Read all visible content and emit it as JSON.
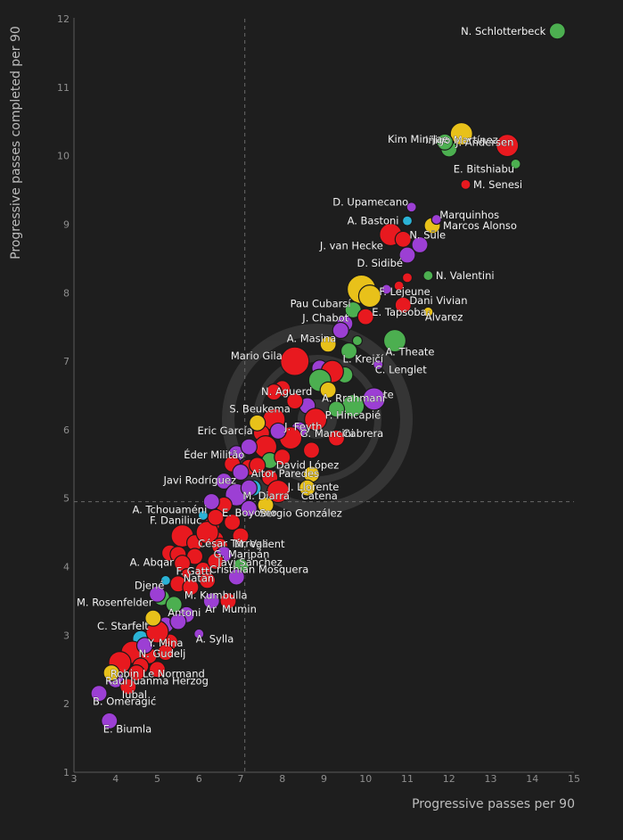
{
  "chart_data": {
    "type": "scatter",
    "title": "",
    "xlabel": "Progressive passes per 90",
    "ylabel": "Progressive passes completed per 90",
    "xlim": [
      3,
      15
    ],
    "ylim": [
      1,
      12
    ],
    "x_ticks": [
      "3",
      "4",
      "5",
      "6",
      "7",
      "8",
      "9",
      "10",
      "11",
      "12",
      "13",
      "14",
      "15"
    ],
    "y_ticks": [
      "1",
      "2",
      "3",
      "4",
      "5",
      "6",
      "7",
      "8",
      "9",
      "10",
      "11",
      "12"
    ],
    "x_ref": 7.1,
    "y_ref": 4.95,
    "colors": {
      "green": "#4caf50",
      "red": "#e8191f",
      "purple": "#9c3fd4",
      "yellow": "#e8c11a",
      "cyan": "#2bb3d6",
      "background": "#1e1e1e",
      "axis": "#666666",
      "text": "#f2f2f2"
    },
    "labeled_points": [
      {
        "name": "N. Schlotterbeck",
        "x": 14.6,
        "y": 11.82,
        "size": "m",
        "color": "green",
        "anchor": "left"
      },
      {
        "name": "Iñigo Martínez",
        "x": 13.4,
        "y": 10.15,
        "size": "l",
        "color": "red",
        "anchor": "left-top"
      },
      {
        "name": "Kim Min-Jae",
        "x": 12.3,
        "y": 10.32,
        "size": "l",
        "color": "yellow",
        "anchor": "left-bottom"
      },
      {
        "name": "J. Andersen",
        "x": 11.9,
        "y": 10.2,
        "size": "m",
        "color": "green",
        "anchor": "right"
      },
      {
        "name": "E. Bitshiabu",
        "x": 13.6,
        "y": 9.88,
        "size": "s",
        "color": "green",
        "anchor": "left-below"
      },
      {
        "name": "M. Senesi",
        "x": 12.4,
        "y": 9.58,
        "size": "s",
        "color": "red",
        "anchor": "right"
      },
      {
        "name": "D. Upamecano",
        "x": 11.1,
        "y": 9.25,
        "size": "s",
        "color": "purple",
        "anchor": "left-top"
      },
      {
        "name": "Marquinhos",
        "x": 11.7,
        "y": 9.07,
        "size": "s",
        "color": "purple",
        "anchor": "right-top"
      },
      {
        "name": "A. Bastoni",
        "x": 11.0,
        "y": 9.05,
        "size": "s",
        "color": "cyan",
        "anchor": "left"
      },
      {
        "name": "Marcos Alonso",
        "x": 11.6,
        "y": 8.98,
        "size": "m",
        "color": "yellow",
        "anchor": "right"
      },
      {
        "name": "J. van Hecke",
        "x": 10.6,
        "y": 8.85,
        "size": "l",
        "color": "red",
        "anchor": "left-below"
      },
      {
        "name": "N. Süle",
        "x": 10.9,
        "y": 8.78,
        "size": "m",
        "color": "red",
        "anchor": "right-top"
      },
      {
        "name": "D. Sidibé",
        "x": 11.0,
        "y": 8.55,
        "size": "m",
        "color": "purple",
        "anchor": "left-below"
      },
      {
        "name": "N. Valentini",
        "x": 11.5,
        "y": 8.25,
        "size": "s",
        "color": "green",
        "anchor": "right"
      },
      {
        "name": "Pau Cubarsí",
        "x": 9.9,
        "y": 8.05,
        "size": "xl",
        "color": "yellow",
        "anchor": "left-below"
      },
      {
        "name": "F. Lejeune",
        "x": 10.1,
        "y": 7.95,
        "size": "l",
        "color": "yellow",
        "anchor": "right-top"
      },
      {
        "name": "Dani Vivian",
        "x": 10.9,
        "y": 7.82,
        "size": "m",
        "color": "red",
        "anchor": "right-top"
      },
      {
        "name": "J. Chabot",
        "x": 9.7,
        "y": 7.75,
        "size": "m",
        "color": "green",
        "anchor": "left-below"
      },
      {
        "name": "E. Tapsoba",
        "x": 10.0,
        "y": 7.65,
        "size": "m",
        "color": "red",
        "anchor": "right-top"
      },
      {
        "name": "Álvarez",
        "x": 11.5,
        "y": 7.72,
        "size": "s",
        "color": "yellow",
        "anchor": "right-below"
      },
      {
        "name": "A. Masina",
        "x": 9.4,
        "y": 7.45,
        "size": "m",
        "color": "purple",
        "anchor": "left-below"
      },
      {
        "name": "A. Theate",
        "x": 10.7,
        "y": 7.3,
        "size": "l",
        "color": "green",
        "anchor": "right-below"
      },
      {
        "name": "L. Krejčí",
        "x": 9.6,
        "y": 7.15,
        "size": "m",
        "color": "green",
        "anchor": "right-below"
      },
      {
        "name": "Mario Gila",
        "x": 8.3,
        "y": 7.0,
        "size": "xl",
        "color": "red",
        "anchor": "left-top"
      },
      {
        "name": "C. Lenglet",
        "x": 10.3,
        "y": 6.95,
        "size": "s",
        "color": "purple",
        "anchor": "right-below"
      },
      {
        "name": "N. Aguerd",
        "x": 8.9,
        "y": 6.72,
        "size": "l",
        "color": "green",
        "anchor": "left-below"
      },
      {
        "name": "A. Rrahmani",
        "x": 9.1,
        "y": 6.58,
        "size": "m",
        "color": "yellow",
        "anchor": "right-below"
      },
      {
        "name": "te",
        "x": 10.2,
        "y": 6.45,
        "size": "l",
        "color": "purple",
        "anchor": "right-top"
      },
      {
        "name": "S. Beukema",
        "x": 8.3,
        "y": 6.42,
        "size": "m",
        "color": "red",
        "anchor": "left-below"
      },
      {
        "name": "P. Hincapié",
        "x": 8.8,
        "y": 6.15,
        "size": "l",
        "color": "red",
        "anchor": "right-top"
      },
      {
        "name": "Eric García",
        "x": 7.4,
        "y": 6.1,
        "size": "m",
        "color": "yellow",
        "anchor": "left-below"
      },
      {
        "name": "J. Feyth",
        "x": 7.9,
        "y": 5.98,
        "size": "m",
        "color": "purple",
        "anchor": "right-top"
      },
      {
        "name": "G. Mancini",
        "x": 8.2,
        "y": 5.88,
        "size": "l",
        "color": "red",
        "anchor": "right-top"
      },
      {
        "name": "Cabrera",
        "x": 9.3,
        "y": 5.88,
        "size": "m",
        "color": "red",
        "anchor": "right-top"
      },
      {
        "name": "Éder Militão",
        "x": 7.2,
        "y": 5.75,
        "size": "m",
        "color": "purple",
        "anchor": "left-below"
      },
      {
        "name": "David López",
        "x": 8.0,
        "y": 5.6,
        "size": "m",
        "color": "red",
        "anchor": "right-below"
      },
      {
        "name": "Aitor Paredes",
        "x": 7.4,
        "y": 5.48,
        "size": "m",
        "color": "red",
        "anchor": "right-below"
      },
      {
        "name": "Javi Rodríguez",
        "x": 7.0,
        "y": 5.38,
        "size": "m",
        "color": "purple",
        "anchor": "left-below"
      },
      {
        "name": "M. Diarra",
        "x": 7.2,
        "y": 5.15,
        "size": "m",
        "color": "purple",
        "anchor": "right-below"
      },
      {
        "name": "J. Llorente",
        "x": 7.9,
        "y": 5.1,
        "size": "l",
        "color": "red",
        "anchor": "right-top"
      },
      {
        "name": "Catena",
        "x": 8.6,
        "y": 5.15,
        "size": "m",
        "color": "yellow",
        "anchor": "right-below"
      },
      {
        "name": "A. Tchouaméni",
        "x": 6.3,
        "y": 4.95,
        "size": "m",
        "color": "purple",
        "anchor": "left-below"
      },
      {
        "name": "Sergio González",
        "x": 7.6,
        "y": 4.9,
        "size": "m",
        "color": "yellow",
        "anchor": "right-below"
      },
      {
        "name": "F. Daniliuc",
        "x": 6.1,
        "y": 4.75,
        "size": "s",
        "color": "cyan",
        "anchor": "left-below"
      },
      {
        "name": "E. Boyomo",
        "x": 6.4,
        "y": 4.72,
        "size": "m",
        "color": "red",
        "anchor": "right-top"
      },
      {
        "name": "César Tárrega",
        "x": 6.2,
        "y": 4.5,
        "size": "l",
        "color": "red",
        "anchor": "right-below"
      },
      {
        "name": "M. Valient",
        "x": 7.0,
        "y": 4.45,
        "size": "m",
        "color": "red",
        "anchor": "right-below"
      },
      {
        "name": "G. Maripán",
        "x": 6.5,
        "y": 4.3,
        "size": "m",
        "color": "red",
        "anchor": "right-below"
      },
      {
        "name": "A. Abqar",
        "x": 5.5,
        "y": 4.18,
        "size": "m",
        "color": "red",
        "anchor": "left-below"
      },
      {
        "name": "Javi Sánchez",
        "x": 6.6,
        "y": 4.18,
        "size": "m",
        "color": "purple",
        "anchor": "right-below"
      },
      {
        "name": "F. Gatti",
        "x": 5.6,
        "y": 4.05,
        "size": "m",
        "color": "red",
        "anchor": "right-below"
      },
      {
        "name": "Cristhian Mosquera",
        "x": 6.4,
        "y": 4.08,
        "size": "m",
        "color": "red",
        "anchor": "right-below"
      },
      {
        "name": "Natan",
        "x": 5.7,
        "y": 3.9,
        "size": "s",
        "color": "red",
        "anchor": "right-below"
      },
      {
        "name": "Djené",
        "x": 5.2,
        "y": 3.8,
        "size": "s",
        "color": "cyan",
        "anchor": "left-below"
      },
      {
        "name": "M. Rosenfelder",
        "x": 5.0,
        "y": 3.6,
        "size": "m",
        "color": "purple",
        "anchor": "left-below"
      },
      {
        "name": "M. Kumbulla",
        "x": 5.8,
        "y": 3.7,
        "size": "m",
        "color": "red",
        "anchor": "right-below"
      },
      {
        "name": "Antoni",
        "x": 5.4,
        "y": 3.45,
        "size": "m",
        "color": "green",
        "anchor": "right-below"
      },
      {
        "name": "Ar",
        "x": 6.3,
        "y": 3.5,
        "size": "m",
        "color": "purple",
        "anchor": "right-below"
      },
      {
        "name": "Mumin",
        "x": 6.7,
        "y": 3.5,
        "size": "m",
        "color": "red",
        "anchor": "right-below"
      },
      {
        "name": "C. Starfelt",
        "x": 4.9,
        "y": 3.25,
        "size": "m",
        "color": "yellow",
        "anchor": "left-below"
      },
      {
        "name": "Y. Mina",
        "x": 5.0,
        "y": 3.05,
        "size": "l",
        "color": "red",
        "anchor": "right-below"
      },
      {
        "name": "A. Sylla",
        "x": 6.0,
        "y": 3.02,
        "size": "s",
        "color": "purple",
        "anchor": "right-below"
      },
      {
        "name": "N. Gudelj",
        "x": 4.7,
        "y": 2.85,
        "size": "m",
        "color": "purple",
        "anchor": "right-below"
      },
      {
        "name": "Robin Le Normand",
        "x": 4.1,
        "y": 2.6,
        "size": "l",
        "color": "red",
        "anchor": "right-below"
      },
      {
        "name": "Raúl",
        "x": 3.9,
        "y": 2.45,
        "size": "m",
        "color": "yellow",
        "anchor": "right-below"
      },
      {
        "name": "Juanma Herzog",
        "x": 4.5,
        "y": 2.45,
        "size": "m",
        "color": "red",
        "anchor": "right-below"
      },
      {
        "name": "Iubal",
        "x": 4.3,
        "y": 2.25,
        "size": "m",
        "color": "red",
        "anchor": "right-below"
      },
      {
        "name": "B. Omeragić",
        "x": 3.6,
        "y": 2.15,
        "size": "m",
        "color": "purple",
        "anchor": "right-below"
      },
      {
        "name": "E. Biumla",
        "x": 3.85,
        "y": 1.75,
        "size": "m",
        "color": "purple",
        "anchor": "right-below"
      }
    ],
    "unlabeled_points": [
      {
        "x": 12.0,
        "y": 10.1,
        "size": "m",
        "color": "green"
      },
      {
        "x": 11.3,
        "y": 8.7,
        "size": "m",
        "color": "purple"
      },
      {
        "x": 11.0,
        "y": 8.22,
        "size": "s",
        "color": "red"
      },
      {
        "x": 10.8,
        "y": 8.1,
        "size": "s",
        "color": "red"
      },
      {
        "x": 10.5,
        "y": 8.05,
        "size": "s",
        "color": "purple"
      },
      {
        "x": 9.5,
        "y": 7.55,
        "size": "m",
        "color": "purple"
      },
      {
        "x": 9.1,
        "y": 7.25,
        "size": "m",
        "color": "yellow"
      },
      {
        "x": 9.8,
        "y": 7.3,
        "size": "s",
        "color": "green"
      },
      {
        "x": 8.9,
        "y": 6.9,
        "size": "m",
        "color": "purple"
      },
      {
        "x": 9.5,
        "y": 6.8,
        "size": "m",
        "color": "green"
      },
      {
        "x": 9.2,
        "y": 6.85,
        "size": "l",
        "color": "red"
      },
      {
        "x": 8.0,
        "y": 6.6,
        "size": "m",
        "color": "red"
      },
      {
        "x": 7.8,
        "y": 6.55,
        "size": "m",
        "color": "red"
      },
      {
        "x": 9.7,
        "y": 6.35,
        "size": "l",
        "color": "green"
      },
      {
        "x": 9.3,
        "y": 6.3,
        "size": "m",
        "color": "green"
      },
      {
        "x": 8.6,
        "y": 6.35,
        "size": "m",
        "color": "purple"
      },
      {
        "x": 7.8,
        "y": 6.15,
        "size": "l",
        "color": "red"
      },
      {
        "x": 8.4,
        "y": 6.0,
        "size": "m",
        "color": "purple"
      },
      {
        "x": 7.5,
        "y": 5.95,
        "size": "m",
        "color": "red"
      },
      {
        "x": 8.7,
        "y": 5.7,
        "size": "m",
        "color": "red"
      },
      {
        "x": 7.6,
        "y": 5.75,
        "size": "l",
        "color": "red"
      },
      {
        "x": 6.9,
        "y": 5.65,
        "size": "m",
        "color": "purple"
      },
      {
        "x": 7.7,
        "y": 5.55,
        "size": "m",
        "color": "green"
      },
      {
        "x": 7.2,
        "y": 5.45,
        "size": "m",
        "color": "red"
      },
      {
        "x": 6.8,
        "y": 5.5,
        "size": "m",
        "color": "red"
      },
      {
        "x": 8.7,
        "y": 5.35,
        "size": "m",
        "color": "yellow"
      },
      {
        "x": 7.7,
        "y": 5.3,
        "size": "m",
        "color": "red"
      },
      {
        "x": 6.6,
        "y": 5.25,
        "size": "m",
        "color": "purple"
      },
      {
        "x": 7.3,
        "y": 5.15,
        "size": "m",
        "color": "cyan"
      },
      {
        "x": 6.9,
        "y": 5.05,
        "size": "l",
        "color": "purple"
      },
      {
        "x": 6.6,
        "y": 4.9,
        "size": "m",
        "color": "red"
      },
      {
        "x": 7.2,
        "y": 4.85,
        "size": "m",
        "color": "purple"
      },
      {
        "x": 6.3,
        "y": 4.6,
        "size": "m",
        "color": "red"
      },
      {
        "x": 6.8,
        "y": 4.65,
        "size": "m",
        "color": "red"
      },
      {
        "x": 5.6,
        "y": 4.45,
        "size": "l",
        "color": "red"
      },
      {
        "x": 5.9,
        "y": 4.35,
        "size": "m",
        "color": "red"
      },
      {
        "x": 6.4,
        "y": 4.4,
        "size": "m",
        "color": "red"
      },
      {
        "x": 5.3,
        "y": 4.2,
        "size": "m",
        "color": "red"
      },
      {
        "x": 5.9,
        "y": 4.15,
        "size": "m",
        "color": "red"
      },
      {
        "x": 7.0,
        "y": 4.0,
        "size": "m",
        "color": "green"
      },
      {
        "x": 6.1,
        "y": 3.95,
        "size": "m",
        "color": "red"
      },
      {
        "x": 5.5,
        "y": 3.75,
        "size": "m",
        "color": "red"
      },
      {
        "x": 6.9,
        "y": 3.85,
        "size": "m",
        "color": "purple"
      },
      {
        "x": 6.2,
        "y": 3.8,
        "size": "m",
        "color": "red"
      },
      {
        "x": 5.1,
        "y": 3.55,
        "size": "m",
        "color": "green"
      },
      {
        "x": 5.7,
        "y": 3.3,
        "size": "m",
        "color": "purple"
      },
      {
        "x": 5.2,
        "y": 3.15,
        "size": "m",
        "color": "purple"
      },
      {
        "x": 5.5,
        "y": 3.2,
        "size": "m",
        "color": "purple"
      },
      {
        "x": 4.6,
        "y": 2.95,
        "size": "m",
        "color": "cyan"
      },
      {
        "x": 5.3,
        "y": 2.9,
        "size": "m",
        "color": "red"
      },
      {
        "x": 4.4,
        "y": 2.75,
        "size": "l",
        "color": "red"
      },
      {
        "x": 4.8,
        "y": 2.7,
        "size": "m",
        "color": "red"
      },
      {
        "x": 5.2,
        "y": 2.75,
        "size": "m",
        "color": "red"
      },
      {
        "x": 4.6,
        "y": 2.55,
        "size": "m",
        "color": "red"
      },
      {
        "x": 5.0,
        "y": 2.5,
        "size": "m",
        "color": "red"
      },
      {
        "x": 4.0,
        "y": 2.35,
        "size": "m",
        "color": "purple"
      }
    ]
  }
}
